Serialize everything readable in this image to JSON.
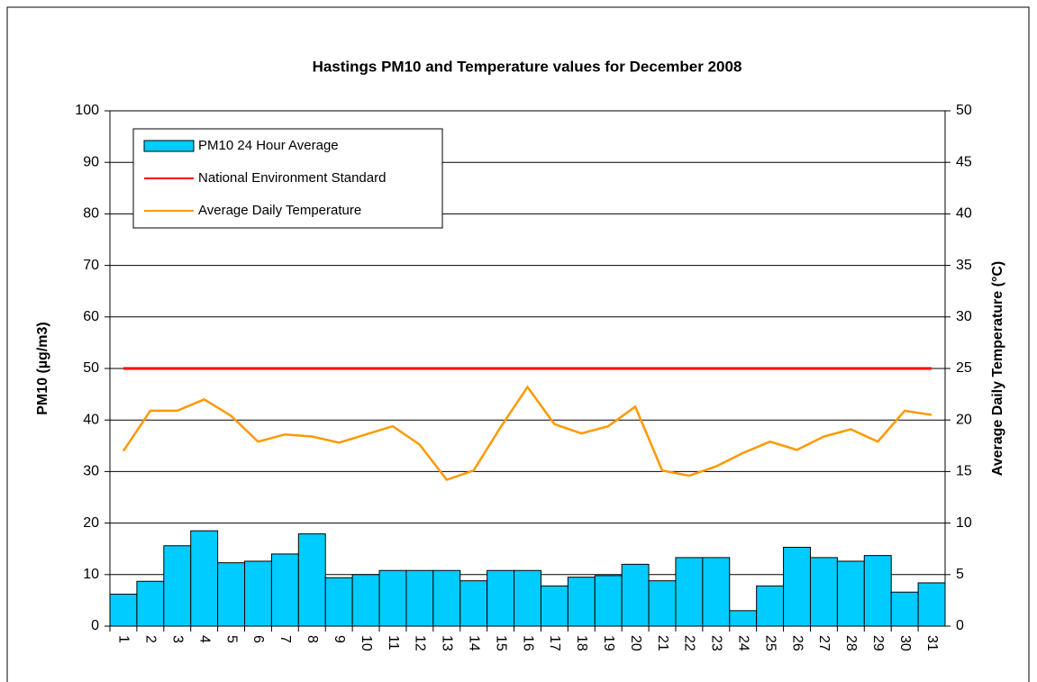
{
  "chart_data": {
    "type": "bar_line",
    "title": "Hastings PM10 and Temperature values for December 2008",
    "ylabel": "PM10 (µg/m3)",
    "y2label": "Average Daily Temperature (°C)",
    "categories": [
      "1",
      "2",
      "3",
      "4",
      "5",
      "6",
      "7",
      "8",
      "9",
      "10",
      "11",
      "12",
      "13",
      "14",
      "15",
      "16",
      "17",
      "18",
      "19",
      "20",
      "21",
      "22",
      "23",
      "24",
      "25",
      "26",
      "27",
      "28",
      "29",
      "30",
      "31"
    ],
    "series": [
      {
        "name": "PM10 24 Hour Average",
        "kind": "bar",
        "color": "#00ccff",
        "values": [
          6.2,
          8.7,
          15.6,
          18.5,
          12.3,
          12.6,
          14.0,
          17.9,
          9.4,
          10.0,
          10.8,
          10.8,
          10.8,
          8.8,
          10.8,
          10.8,
          7.8,
          9.5,
          9.8,
          12.0,
          8.8,
          13.3,
          13.3,
          3.0,
          7.8,
          15.3,
          13.3,
          12.6,
          13.7,
          6.6,
          8.4
        ]
      },
      {
        "name": "National Environment Standard",
        "kind": "line",
        "color": "#ff0000",
        "values": [
          50,
          50,
          50,
          50,
          50,
          50,
          50,
          50,
          50,
          50,
          50,
          50,
          50,
          50,
          50,
          50,
          50,
          50,
          50,
          50,
          50,
          50,
          50,
          50,
          50,
          50,
          50,
          50,
          50,
          50,
          50
        ]
      },
      {
        "name": "Average Daily Temperature",
        "kind": "line",
        "color": "#ff9900",
        "axis": "y2",
        "values": [
          17.0,
          20.9,
          20.9,
          22.0,
          20.4,
          17.9,
          18.6,
          18.4,
          17.8,
          18.6,
          19.4,
          17.6,
          14.2,
          15.1,
          19.3,
          23.2,
          19.6,
          18.7,
          19.4,
          21.3,
          15.1,
          14.6,
          15.5,
          16.8,
          17.9,
          17.1,
          18.4,
          19.1,
          17.9,
          20.9,
          20.5
        ]
      }
    ],
    "ylim": [
      0,
      100
    ],
    "yticks": [
      0,
      10,
      20,
      30,
      40,
      50,
      60,
      70,
      80,
      90,
      100
    ],
    "y2lim": [
      0,
      50
    ],
    "y2ticks": [
      0,
      5,
      10,
      15,
      20,
      25,
      30,
      35,
      40,
      45,
      50
    ],
    "grid": true,
    "legend": "upper left"
  }
}
